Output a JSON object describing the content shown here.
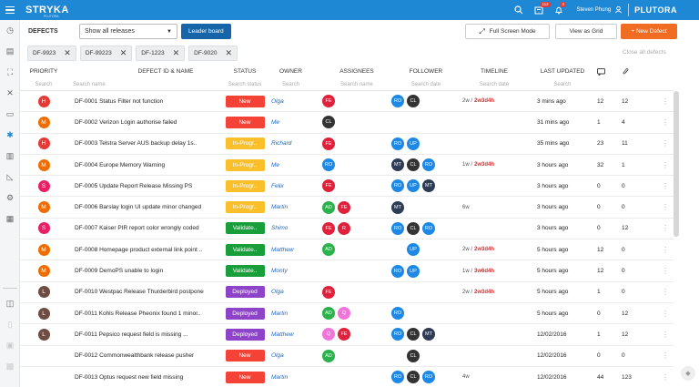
{
  "app": {
    "logo": "STRYKA",
    "logo_sub": "PLUTORA",
    "user_name": "Steven Phung",
    "brand": "PLUTORA",
    "notif_badge_1": "112",
    "notif_badge_2": "3"
  },
  "toolbar": {
    "title": "DEFECTS",
    "release_select": "Show all releases",
    "leader_board": "Leader board",
    "full_screen": "Full Screen Mode",
    "view_grid": "View as Grid",
    "new_defect": "+ New Defect"
  },
  "chips": [
    "DF-9923",
    "DF-99223",
    "DF-1223",
    "DF-9020"
  ],
  "close_all": "Close all defects",
  "columns": {
    "priority": "PRIORITY",
    "id_name": "DEFECT ID & NAME",
    "status": "STATUS",
    "owner": "OWNER",
    "assignees": "ASSIGNEES",
    "follower": "FOLLOWER",
    "timeline": "TIMELINE",
    "last_updated": "LAST UPDATED"
  },
  "search_row": {
    "priority": "Search",
    "name": "Search name",
    "status": "Search status",
    "owner": "Search",
    "assignees": "Search name",
    "follower": "Search date",
    "timeline": "Search date",
    "last_updated": "Search"
  },
  "colors": {
    "H": "#e53935",
    "M": "#ef6c00",
    "S": "#e91e63",
    "L": "#6d4c41",
    "New": "#f44336",
    "In-Progr..": "#f9c02b",
    "Validate..": "#1a9e3b",
    "Deployed": "#8e44c8",
    "FE": "#e0213b",
    "CL": "#333333",
    "RO": "#1e88e5",
    "UP": "#1e88e5",
    "MT": "#2f3c56",
    "AD": "#2bb24c",
    "R": "#e0213b",
    "Q": "#f075d8"
  },
  "rows": [
    {
      "priority": "H",
      "id": "DF-0001 Status Filter not function",
      "status": "New",
      "owner": "Olga",
      "assignees": [
        "FE"
      ],
      "followers": [
        "RO",
        "CL"
      ],
      "timeline": "2w /",
      "timeline_red": "2w3d4h",
      "updated": "3 mins ago",
      "comments": "12",
      "attachments": "12"
    },
    {
      "priority": "M",
      "id": "DF-0002 Verizon Login authorise failed",
      "status": "New",
      "owner": "Me",
      "assignees": [
        "CL"
      ],
      "followers": [],
      "timeline": "",
      "timeline_red": "",
      "updated": "31 mins ago",
      "comments": "1",
      "attachments": "4"
    },
    {
      "priority": "H",
      "id": "DF-0003 Telstra Server AUS backup delay 1s..",
      "status": "In-Progr..",
      "owner": "Richard",
      "assignees": [
        "FE"
      ],
      "followers": [
        "RO",
        "UP"
      ],
      "timeline": "",
      "timeline_red": "",
      "updated": "35 mins ago",
      "comments": "23",
      "attachments": "11"
    },
    {
      "priority": "M",
      "id": "DF-0004 Europe Memory Warning",
      "status": "In-Progr..",
      "owner": "Me",
      "assignees": [
        "RO"
      ],
      "followers": [
        "MT",
        "CL",
        "RO"
      ],
      "timeline": "1w /",
      "timeline_red": "2w3d4h",
      "updated": "3 hours ago",
      "comments": "32",
      "attachments": "1"
    },
    {
      "priority": "S",
      "id": "DF-0005 Update Report Release Missing PS",
      "status": "In-Progr..",
      "owner": "Felix",
      "assignees": [
        "FE"
      ],
      "followers": [
        "RO",
        "UP",
        "MT"
      ],
      "timeline": "",
      "timeline_red": "",
      "updated": "3 hours ago",
      "comments": "0",
      "attachments": "0"
    },
    {
      "priority": "M",
      "id": "DF-0006 Barslay login UI update minor changed",
      "status": "In-Progr..",
      "owner": "Martin",
      "assignees": [
        "AD",
        "FE"
      ],
      "followers": [
        "MT"
      ],
      "timeline": "6w",
      "timeline_red": "",
      "updated": "3 hours ago",
      "comments": "0",
      "attachments": "0"
    },
    {
      "priority": "S",
      "id": "DF-0007 Kaiser PIR report color wrongly coded",
      "status": "Validate..",
      "owner": "Shimo",
      "assignees": [
        "FE",
        "R"
      ],
      "followers": [
        "RO",
        "CL",
        "RO"
      ],
      "timeline": "",
      "timeline_red": "",
      "updated": "3 hours ago",
      "comments": "0",
      "attachments": "12"
    },
    {
      "priority": "M",
      "id": "DF-0008 Homepage product external link point ..",
      "status": "Validate..",
      "owner": "Matthew",
      "assignees": [
        "AD"
      ],
      "followers": [
        "_",
        "UP"
      ],
      "timeline": "2w /",
      "timeline_red": "2w3d4h",
      "updated": "5 hours ago",
      "comments": "12",
      "attachments": "0"
    },
    {
      "priority": "M",
      "id": "DF-0009 DemoPS unable to login",
      "status": "Validate..",
      "owner": "Monty",
      "assignees": [],
      "followers": [
        "RO",
        "UP"
      ],
      "timeline": "1w /",
      "timeline_red": "3w6d4h",
      "updated": "5 hours ago",
      "comments": "12",
      "attachments": "0"
    },
    {
      "priority": "L",
      "id": "DF-0010 Westpac Release Thurderbird postpone",
      "status": "Deployed",
      "owner": "Olga",
      "assignees": [
        "FE"
      ],
      "followers": [],
      "timeline": "2w /",
      "timeline_red": "2w3d4h",
      "updated": "5 hours ago",
      "comments": "1",
      "attachments": "0"
    },
    {
      "priority": "L",
      "id": "DF-0011 Kohls Release Pheonix found 1 minor..",
      "status": "Deployed",
      "owner": "Martin",
      "assignees": [
        "AD",
        "Q"
      ],
      "followers": [
        "RO"
      ],
      "timeline": "",
      "timeline_red": "",
      "updated": "5 hours ago",
      "comments": "0",
      "attachments": "12"
    },
    {
      "priority": "L",
      "id": "DF-0011 Pepsico request field is missing ...",
      "status": "Deployed",
      "owner": "Matthew",
      "assignees": [
        "Q",
        "FE"
      ],
      "followers": [
        "RO",
        "CL",
        "MT"
      ],
      "timeline": "",
      "timeline_red": "",
      "updated": "12/02/2016",
      "comments": "1",
      "attachments": "12"
    },
    {
      "priority": "",
      "id": "DF-0012 Commonwealthbank release pusher",
      "status": "New",
      "owner": "Olga",
      "assignees": [
        "AD"
      ],
      "followers": [
        "_",
        "CL"
      ],
      "timeline": "",
      "timeline_red": "",
      "updated": "12/02/2016",
      "comments": "0",
      "attachments": "0"
    },
    {
      "priority": "",
      "id": "DF-0013 Optus request new field missing",
      "status": "New",
      "owner": "Martin",
      "assignees": [],
      "followers": [
        "RO",
        "CL",
        "RO"
      ],
      "timeline": "4w",
      "timeline_red": "",
      "updated": "12/02/2016",
      "comments": "44",
      "attachments": "123"
    }
  ]
}
